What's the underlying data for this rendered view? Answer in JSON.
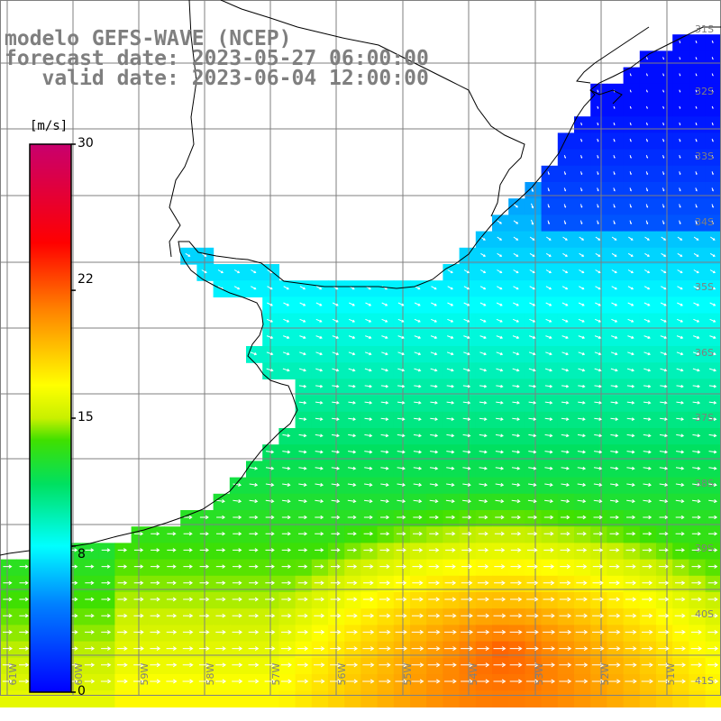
{
  "title": {
    "model": "modelo GEFS-WAVE (NCEP)",
    "forecast": "forecast date: 2023-05-27 06:00:00",
    "valid": "valid date: 2023-06-04 12:00:00"
  },
  "colorbar": {
    "unit": "[m/s]",
    "ticks": [
      "30",
      "22",
      "15",
      "8",
      "0"
    ],
    "values": [
      30,
      22,
      15,
      8,
      0
    ],
    "range": [
      0,
      30
    ],
    "colors": [
      "#0000ff",
      "#00ffff",
      "#00e000",
      "#ffff00",
      "#ff0000",
      "#c8006e"
    ]
  },
  "map": {
    "longitude_labels": [
      "61W",
      "60W",
      "59W",
      "58W",
      "57W",
      "56W",
      "55W",
      "54W",
      "53W",
      "52W",
      "51W"
    ],
    "latitude_labels": [
      "31S",
      "32S",
      "33S",
      "34S",
      "35S",
      "36S",
      "37S",
      "38S",
      "39S",
      "40S",
      "41S"
    ],
    "grid": true,
    "arrow_color": "#ffffff"
  }
}
